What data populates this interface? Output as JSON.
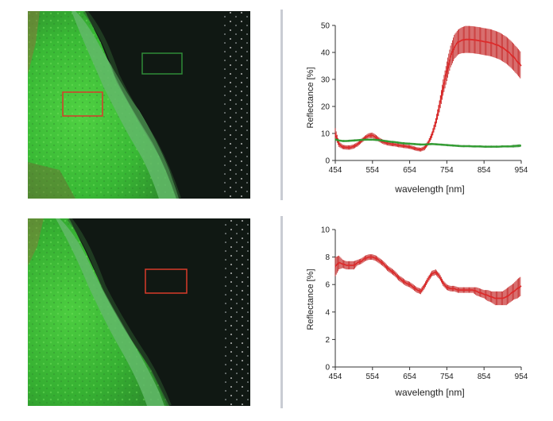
{
  "colors": {
    "red_series": "#dd2b2b",
    "green_series": "#2f9e2f",
    "error_bar": "#c01818",
    "roi_red": "#d83a2a",
    "roi_green": "#2f8a38"
  },
  "photos": [
    {
      "roi_color": "red",
      "roi2_color": "green",
      "caption": ""
    },
    {
      "roi_color": "red",
      "caption": ""
    }
  ],
  "chart_data": [
    {
      "type": "line",
      "xlabel": "wavelength [nm]",
      "ylabel": "Reflectance [%]",
      "xlim": [
        454,
        954
      ],
      "ylim": [
        0,
        50
      ],
      "xticks": [
        "454",
        "554",
        "654",
        "754",
        "854",
        "954"
      ],
      "yticks": [
        "0",
        "10",
        "20",
        "30",
        "40",
        "50"
      ],
      "series": [
        {
          "name": "red",
          "x": [
            454,
            464,
            474,
            484,
            494,
            504,
            514,
            524,
            534,
            544,
            554,
            564,
            574,
            584,
            594,
            604,
            614,
            624,
            634,
            644,
            654,
            664,
            674,
            684,
            694,
            704,
            714,
            724,
            734,
            744,
            754,
            764,
            774,
            784,
            794,
            804,
            814,
            824,
            834,
            844,
            854,
            864,
            874,
            884,
            894,
            904,
            914,
            924,
            934,
            944,
            954
          ],
          "y": [
            10,
            6,
            5,
            4.8,
            4.8,
            5.2,
            6,
            7.2,
            8.4,
            9.2,
            9.3,
            8.5,
            7.5,
            6.8,
            6.4,
            6.1,
            5.9,
            5.6,
            5.4,
            5.2,
            5,
            4.6,
            4.2,
            4,
            4.6,
            6.5,
            9.5,
            14,
            20,
            27,
            33,
            38.5,
            42,
            43.8,
            44.5,
            44.8,
            44.8,
            44.7,
            44.5,
            44.3,
            44,
            43.8,
            43.5,
            43,
            42.5,
            41.7,
            40.8,
            39.6,
            38.2,
            36.6,
            35
          ],
          "err": [
            2,
            1,
            0.8,
            0.8,
            0.8,
            0.8,
            0.8,
            0.8,
            0.8,
            0.9,
            1,
            0.9,
            0.8,
            0.8,
            0.8,
            0.8,
            0.7,
            0.7,
            0.7,
            0.7,
            0.7,
            0.7,
            0.7,
            0.7,
            0.8,
            0.9,
            1.2,
            1.6,
            2.2,
            3,
            3.6,
            4,
            4.5,
            4.6,
            4.8,
            5,
            5,
            5,
            5,
            5,
            5,
            5,
            5,
            5,
            5,
            5,
            5,
            5,
            5,
            5,
            5
          ]
        },
        {
          "name": "green",
          "x": [
            454,
            464,
            474,
            484,
            494,
            504,
            514,
            524,
            534,
            544,
            554,
            564,
            574,
            584,
            594,
            604,
            614,
            624,
            634,
            644,
            654,
            664,
            674,
            684,
            694,
            704,
            714,
            724,
            734,
            744,
            754,
            764,
            774,
            784,
            794,
            804,
            814,
            824,
            834,
            844,
            854,
            864,
            874,
            884,
            894,
            904,
            914,
            924,
            934,
            944,
            954
          ],
          "y": [
            7.8,
            7.4,
            7.2,
            7.2,
            7.3,
            7.4,
            7.5,
            7.6,
            7.7,
            7.7,
            7.7,
            7.6,
            7.5,
            7.3,
            7.1,
            6.9,
            6.8,
            6.6,
            6.4,
            6.3,
            6.2,
            6.1,
            6,
            5.9,
            5.9,
            6,
            6.1,
            6,
            5.9,
            5.8,
            5.7,
            5.6,
            5.5,
            5.4,
            5.3,
            5.3,
            5.3,
            5.2,
            5.2,
            5.2,
            5.1,
            5.1,
            5.1,
            5.1,
            5.1,
            5.2,
            5.2,
            5.2,
            5.3,
            5.4,
            5.5
          ],
          "err": [
            0.4,
            0.4,
            0.4,
            0.4,
            0.4,
            0.4,
            0.4,
            0.4,
            0.4,
            0.4,
            0.4,
            0.4,
            0.4,
            0.4,
            0.4,
            0.4,
            0.4,
            0.4,
            0.4,
            0.4,
            0.4,
            0.4,
            0.4,
            0.4,
            0.4,
            0.4,
            0.4,
            0.4,
            0.4,
            0.4,
            0.4,
            0.4,
            0.4,
            0.4,
            0.4,
            0.4,
            0.4,
            0.4,
            0.4,
            0.4,
            0.4,
            0.4,
            0.4,
            0.4,
            0.4,
            0.4,
            0.4,
            0.4,
            0.5,
            0.5,
            0.5
          ]
        }
      ]
    },
    {
      "type": "line",
      "xlabel": "wavelength [nm]",
      "ylabel": "Reflectance [%]",
      "xlim": [
        454,
        954
      ],
      "ylim": [
        0,
        10
      ],
      "xticks": [
        "454",
        "554",
        "654",
        "754",
        "854",
        "954"
      ],
      "yticks": [
        "0",
        "2",
        "4",
        "6",
        "8",
        "10"
      ],
      "series": [
        {
          "name": "red",
          "x": [
            454,
            464,
            474,
            484,
            494,
            504,
            514,
            524,
            534,
            544,
            554,
            564,
            574,
            584,
            594,
            604,
            614,
            624,
            634,
            644,
            654,
            664,
            674,
            684,
            694,
            704,
            714,
            724,
            734,
            744,
            754,
            764,
            774,
            784,
            794,
            804,
            814,
            824,
            834,
            844,
            854,
            864,
            874,
            884,
            894,
            904,
            914,
            924,
            934,
            944,
            954
          ],
          "y": [
            7.3,
            7.6,
            7.5,
            7.4,
            7.4,
            7.4,
            7.6,
            7.7,
            7.9,
            8,
            8,
            7.9,
            7.7,
            7.5,
            7.2,
            7,
            6.8,
            6.5,
            6.3,
            6.1,
            6,
            5.8,
            5.6,
            5.5,
            5.9,
            6.4,
            6.8,
            6.9,
            6.6,
            6.1,
            5.8,
            5.7,
            5.7,
            5.6,
            5.6,
            5.6,
            5.6,
            5.6,
            5.5,
            5.4,
            5.3,
            5.2,
            5.1,
            5,
            5,
            5,
            5.1,
            5.3,
            5.5,
            5.7,
            5.9
          ],
          "err": [
            0.7,
            0.5,
            0.3,
            0.3,
            0.3,
            0.3,
            0.2,
            0.2,
            0.2,
            0.2,
            0.2,
            0.2,
            0.2,
            0.2,
            0.2,
            0.2,
            0.2,
            0.2,
            0.2,
            0.2,
            0.2,
            0.2,
            0.2,
            0.2,
            0.2,
            0.2,
            0.2,
            0.2,
            0.2,
            0.2,
            0.2,
            0.2,
            0.2,
            0.2,
            0.2,
            0.2,
            0.2,
            0.2,
            0.3,
            0.3,
            0.3,
            0.4,
            0.4,
            0.5,
            0.5,
            0.5,
            0.6,
            0.6,
            0.6,
            0.7,
            0.7
          ]
        }
      ]
    }
  ]
}
